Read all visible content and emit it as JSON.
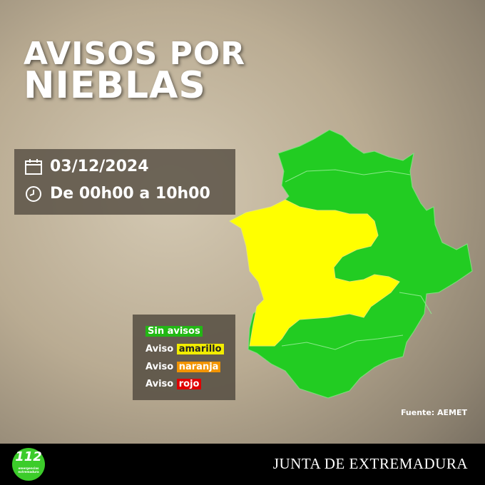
{
  "title": {
    "line1": "AVISOS POR",
    "line2": "NIEBLAS"
  },
  "info": {
    "date": "03/12/2024",
    "time": "De 00h00 a 10h00",
    "date_icon": "calendar-icon",
    "time_icon": "clock-icon"
  },
  "legend": [
    {
      "prefix": "",
      "label": "Sin avisos",
      "color": "#22b814"
    },
    {
      "prefix": "Aviso ",
      "label": "amarillo",
      "color": "#f2ec00"
    },
    {
      "prefix": "Aviso ",
      "label": "naranja",
      "color": "#f29400"
    },
    {
      "prefix": "Aviso ",
      "label": "rojo",
      "color": "#e00000"
    }
  ],
  "map": {
    "green": "#22cc22",
    "yellow": "#ffff00"
  },
  "source": "Fuente: AEMET",
  "footer": {
    "logo_text": "112",
    "logo_sub": "emergencias extremadura",
    "org": "JUNTA DE EXTREMADURA"
  }
}
